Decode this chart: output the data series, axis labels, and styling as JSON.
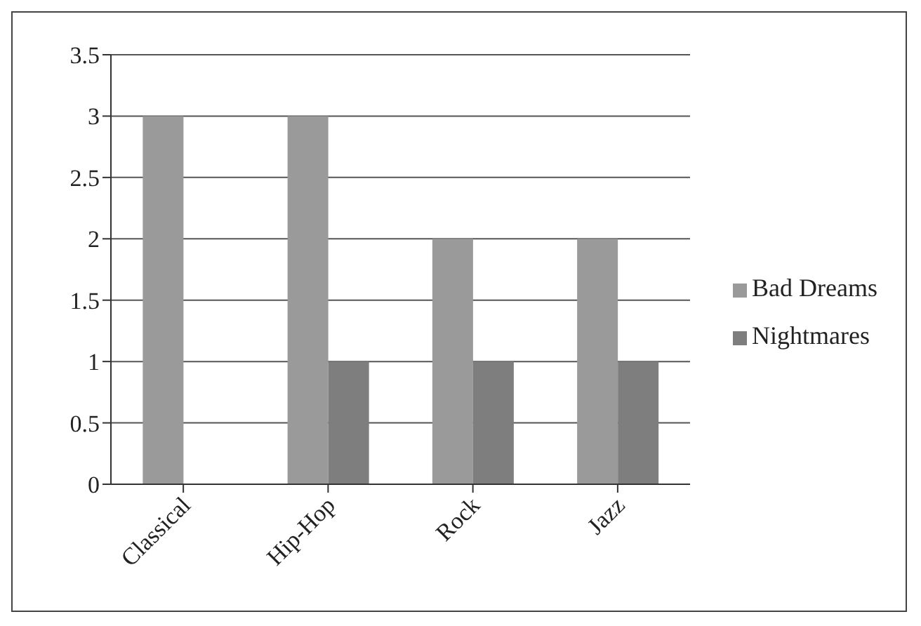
{
  "chart_data": {
    "type": "bar",
    "categories": [
      "Classical",
      "Hip-Hop",
      "Rock",
      "Jazz"
    ],
    "series": [
      {
        "name": "Bad Dreams",
        "color": "#9a9a9a",
        "values": [
          3,
          3,
          2,
          2
        ]
      },
      {
        "name": "Nightmares",
        "color": "#7e7e7e",
        "values": [
          0,
          1,
          1,
          1
        ]
      }
    ],
    "ylim": [
      0,
      3.5
    ],
    "yticks": [
      0,
      0.5,
      1,
      1.5,
      2,
      2.5,
      3,
      3.5
    ],
    "grid": "y",
    "legend": "right"
  }
}
